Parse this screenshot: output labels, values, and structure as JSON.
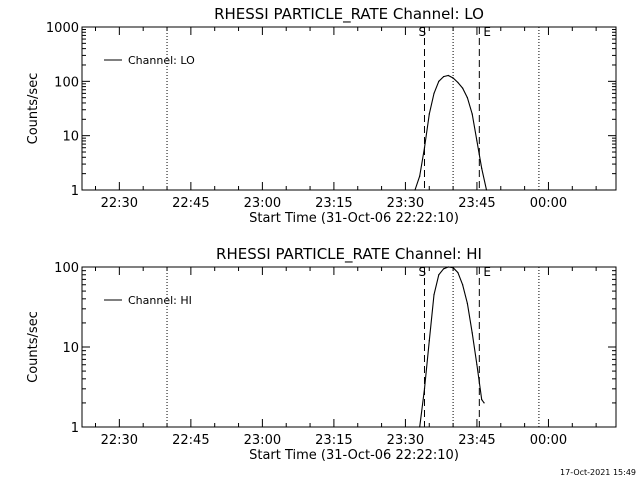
{
  "footer": {
    "timestamp": "17-Oct-2021 15:49"
  },
  "chart_data": [
    {
      "type": "line",
      "title": "RHESSI PARTICLE_RATE Channel: LO",
      "xlabel": "Start Time (31-Oct-06 22:22:10)",
      "ylabel": "Counts/sec",
      "y_scale": "log",
      "ylim": [
        1,
        1000
      ],
      "xlim_minutes_after_start": [
        0,
        112
      ],
      "x_tick_labels": [
        "22:30",
        "22:45",
        "23:00",
        "23:15",
        "23:30",
        "23:45",
        "00:00"
      ],
      "y_tick_labels": [
        "1",
        "10",
        "100",
        "1000"
      ],
      "y_tick_values": [
        1,
        10,
        100,
        1000
      ],
      "legend": {
        "label": "Channel: LO",
        "position": "top-left"
      },
      "markers": {
        "start_label": "S",
        "end_label": "E"
      },
      "series": [
        {
          "name": "Channel: LO",
          "x": [
            "23:32:00",
            "23:33:00",
            "23:34:00",
            "23:35:00",
            "23:36:00",
            "23:37:00",
            "23:38:00",
            "23:39:00",
            "23:40:00",
            "23:41:00",
            "23:42:00",
            "23:43:00",
            "23:44:00",
            "23:45:00",
            "23:46:00",
            "23:47:00"
          ],
          "values": [
            0.9,
            1.8,
            6,
            25,
            60,
            100,
            122,
            128,
            115,
            95,
            75,
            50,
            25,
            8,
            2.5,
            0.9
          ]
        }
      ]
    },
    {
      "type": "line",
      "title": "RHESSI PARTICLE_RATE Channel: HI",
      "xlabel": "Start Time (31-Oct-06 22:22:10)",
      "ylabel": "Counts/sec",
      "y_scale": "log",
      "ylim": [
        1,
        100
      ],
      "xlim_minutes_after_start": [
        0,
        112
      ],
      "x_tick_labels": [
        "22:30",
        "22:45",
        "23:00",
        "23:15",
        "23:30",
        "23:45",
        "00:00"
      ],
      "y_tick_labels": [
        "1",
        "10",
        "100"
      ],
      "y_tick_values": [
        1,
        10,
        100
      ],
      "legend": {
        "label": "Channel: HI",
        "position": "top-left"
      },
      "markers": {
        "start_label": "S",
        "end_label": "E"
      },
      "series": [
        {
          "name": "Channel: HI",
          "x": [
            "23:33:00",
            "23:34:00",
            "23:35:00",
            "23:36:00",
            "23:37:00",
            "23:38:00",
            "23:39:00",
            "23:40:00",
            "23:41:00",
            "23:42:00",
            "23:43:00",
            "23:44:00",
            "23:45:00",
            "23:46:00",
            "23:46:30"
          ],
          "values": [
            1.0,
            3,
            12,
            45,
            80,
            95,
            100,
            98,
            85,
            60,
            35,
            15,
            6,
            2.2,
            2.0
          ]
        }
      ]
    }
  ]
}
